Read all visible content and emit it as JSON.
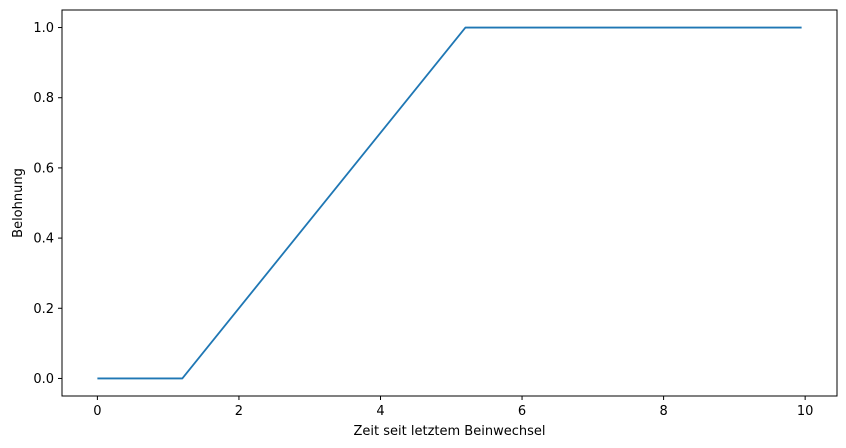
{
  "chart_data": {
    "type": "line",
    "title": "",
    "xlabel": "Zeit seit letztem Beinwechsel",
    "ylabel": "Belohnung",
    "xlim": [
      -0.5,
      10.45
    ],
    "ylim": [
      -0.05,
      1.05
    ],
    "xticks": [
      0,
      2,
      4,
      6,
      8,
      10
    ],
    "yticks": [
      0.0,
      0.2,
      0.4,
      0.6,
      0.8,
      1.0
    ],
    "grid": false,
    "legend": "none",
    "series": [
      {
        "color": "#1f77b4",
        "x": [
          0,
          1.2,
          5.2,
          9.95
        ],
        "y": [
          0.0,
          0.0,
          1.0,
          1.0
        ]
      }
    ]
  }
}
